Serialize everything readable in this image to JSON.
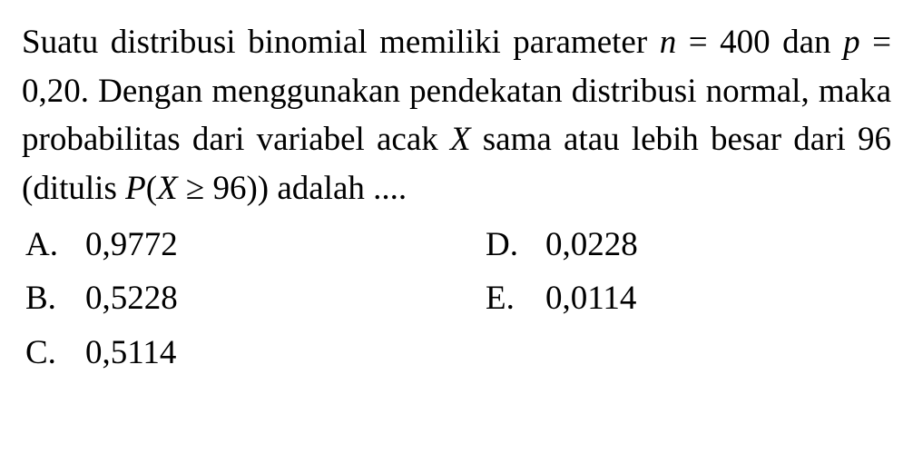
{
  "question": {
    "line1_pre": "Suatu distribusi binomial memiliki parameter ",
    "var_n": "n",
    "eq1": " = 400 dan ",
    "var_p": "p",
    "eq2": " = 0,20. Dengan menggunakan pendekatan distribusi normal, maka probabilitas dari variabel acak ",
    "var_X": "X",
    "line2_post": " sama atau lebih besar dari 96 (ditulis ",
    "expr_P": "P",
    "expr_open": "(",
    "expr_X2": "X",
    "expr_geq": " ≥ 96)) adalah ...."
  },
  "options": {
    "A": {
      "letter": "A.",
      "value": "0,9772"
    },
    "B": {
      "letter": "B.",
      "value": "0,5228"
    },
    "C": {
      "letter": "C.",
      "value": "0,5114"
    },
    "D": {
      "letter": "D.",
      "value": "0,0228"
    },
    "E": {
      "letter": "E.",
      "value": "0,0114"
    }
  },
  "style": {
    "font_family": "Times New Roman",
    "font_size_pt": 28,
    "text_color": "#000000",
    "background_color": "#ffffff"
  }
}
